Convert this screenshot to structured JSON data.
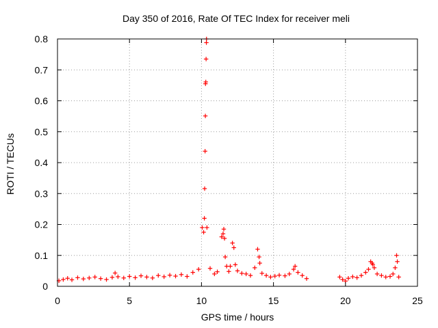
{
  "chart_data": {
    "type": "scatter",
    "title": "Day 350 of 2016, Rate Of TEC Index for receiver meli",
    "xlabel": "GPS time / hours",
    "ylabel": "ROTI / TECUs",
    "xlim": [
      0,
      25
    ],
    "ylim": [
      0,
      0.8
    ],
    "x_ticks": [
      0,
      5,
      10,
      15,
      20,
      25
    ],
    "x_tick_labels": [
      "0",
      "5",
      "10",
      "15",
      "20",
      "25"
    ],
    "y_ticks": [
      0,
      0.1,
      0.2,
      0.3,
      0.4,
      0.5,
      0.6,
      0.7,
      0.8
    ],
    "y_tick_labels": [
      "0",
      "0.1",
      "0.2",
      "0.3",
      "0.4",
      "0.5",
      "0.6",
      "0.7",
      "0.8"
    ],
    "grid": true,
    "marker": "plus",
    "series": [
      {
        "color": "#ff0000",
        "x": [
          0.1,
          0.4,
          0.7,
          1.0,
          1.4,
          1.8,
          2.2,
          2.6,
          3.0,
          3.4,
          3.8,
          4.0,
          4.2,
          4.6,
          5.0,
          5.4,
          5.8,
          6.2,
          6.6,
          7.0,
          7.4,
          7.8,
          8.2,
          8.6,
          9.0,
          9.4,
          9.8,
          10.05,
          10.15,
          10.2,
          10.22,
          10.25,
          10.27,
          10.28,
          10.3,
          10.32,
          10.34,
          10.35,
          10.38,
          10.6,
          10.9,
          11.1,
          11.4,
          11.5,
          11.55,
          11.6,
          11.65,
          11.75,
          11.9,
          12.0,
          12.15,
          12.25,
          12.35,
          12.5,
          12.8,
          13.1,
          13.4,
          13.7,
          13.9,
          14.0,
          14.05,
          14.2,
          14.5,
          14.8,
          15.1,
          15.4,
          15.8,
          16.1,
          16.4,
          16.5,
          16.7,
          17.0,
          17.3,
          19.6,
          19.8,
          20.0,
          20.2,
          20.5,
          20.8,
          21.1,
          21.4,
          21.6,
          21.75,
          21.85,
          21.9,
          22.0,
          22.2,
          22.5,
          22.8,
          23.1,
          23.3,
          23.45,
          23.55,
          23.6,
          23.7
        ],
        "y": [
          0.018,
          0.022,
          0.026,
          0.021,
          0.028,
          0.024,
          0.027,
          0.03,
          0.025,
          0.022,
          0.029,
          0.043,
          0.031,
          0.027,
          0.032,
          0.028,
          0.034,
          0.03,
          0.027,
          0.035,
          0.031,
          0.036,
          0.033,
          0.038,
          0.032,
          0.045,
          0.055,
          0.19,
          0.175,
          0.22,
          0.316,
          0.437,
          0.551,
          0.655,
          0.661,
          0.735,
          0.788,
          0.8,
          0.19,
          0.058,
          0.04,
          0.047,
          0.16,
          0.17,
          0.185,
          0.155,
          0.095,
          0.065,
          0.048,
          0.065,
          0.14,
          0.125,
          0.07,
          0.05,
          0.042,
          0.04,
          0.035,
          0.06,
          0.12,
          0.095,
          0.075,
          0.042,
          0.035,
          0.03,
          0.033,
          0.036,
          0.034,
          0.04,
          0.055,
          0.065,
          0.045,
          0.035,
          0.025,
          0.03,
          0.022,
          0.017,
          0.026,
          0.031,
          0.028,
          0.035,
          0.045,
          0.055,
          0.08,
          0.075,
          0.07,
          0.06,
          0.04,
          0.035,
          0.03,
          0.032,
          0.04,
          0.06,
          0.1,
          0.08,
          0.03
        ]
      }
    ]
  }
}
